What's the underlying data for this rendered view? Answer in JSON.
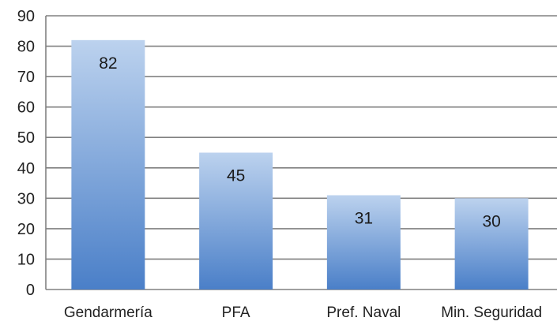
{
  "chart_data": {
    "type": "bar",
    "categories": [
      "Gendarmería",
      "PFA",
      "Pref. Naval",
      "Min. Seguridad"
    ],
    "values": [
      82,
      45,
      31,
      30
    ],
    "data_labels": [
      "82",
      "45",
      "31",
      "30"
    ],
    "title": "",
    "xlabel": "",
    "ylabel": "",
    "ylim": [
      0,
      90
    ],
    "yticks": [
      0,
      10,
      20,
      30,
      40,
      50,
      60,
      70,
      80,
      90
    ],
    "ytick_labels": [
      "0",
      "10",
      "20",
      "30",
      "40",
      "50",
      "60",
      "70",
      "80",
      "90"
    ],
    "grid": true,
    "legend": "none",
    "colors": {
      "bar_top": "#bcd2ee",
      "bar_bottom": "#4a7fc8",
      "grid": "#808080",
      "axis": "#808080"
    }
  }
}
